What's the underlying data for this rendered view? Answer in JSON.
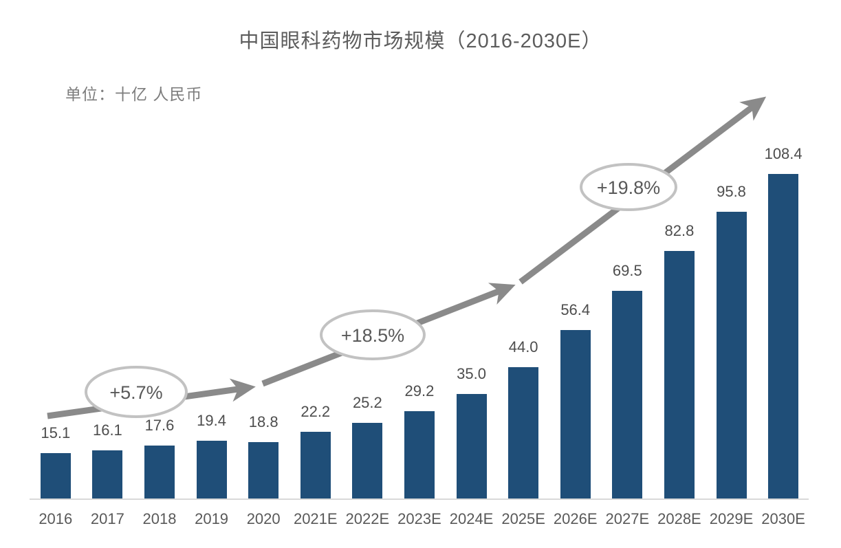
{
  "title": "中国眼科药物市场规模（2016-2030E）",
  "unit_label": "单位：十亿 人民币",
  "chart_data": {
    "type": "bar",
    "title": "中国眼科药物市场规模（2016-2030E）",
    "unit": "十亿 人民币",
    "categories": [
      "2016",
      "2017",
      "2018",
      "2019",
      "2020",
      "2021E",
      "2022E",
      "2023E",
      "2024E",
      "2025E",
      "2026E",
      "2027E",
      "2028E",
      "2029E",
      "2030E"
    ],
    "values": [
      15.1,
      16.1,
      17.6,
      19.4,
      18.8,
      22.2,
      25.2,
      29.2,
      35.0,
      44.0,
      56.4,
      69.5,
      82.8,
      95.8,
      108.4
    ],
    "value_labels": [
      "15.1",
      "16.1",
      "17.6",
      "19.4",
      "18.8",
      "22.2",
      "25.2",
      "29.2",
      "35.0",
      "44.0",
      "56.4",
      "69.5",
      "82.8",
      "95.8",
      "108.4"
    ],
    "xlabel": "",
    "ylabel": "十亿 人民币",
    "ylim": [
      0,
      115
    ],
    "grid": false,
    "legend": false,
    "bar_color": "#1F4E78",
    "trend_arrow_color": "#8A8A8A",
    "annotation_ring_color": "#C2C2C2",
    "annotations": [
      {
        "label": "+5.7%"
      },
      {
        "label": "+18.5%"
      },
      {
        "label": "+19.8%"
      }
    ]
  }
}
